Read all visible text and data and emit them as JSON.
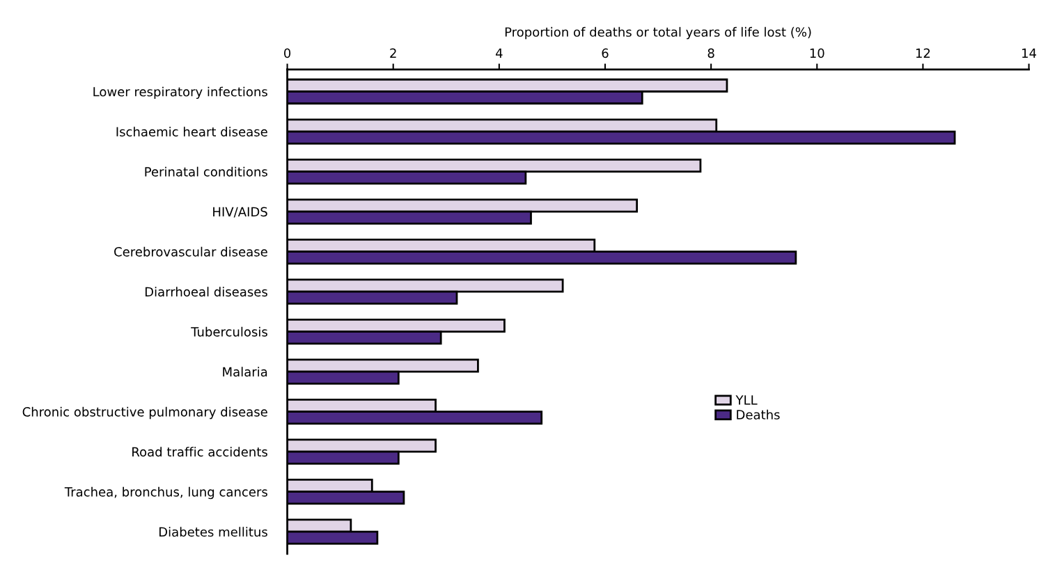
{
  "chart_data": {
    "type": "bar",
    "orientation": "horizontal",
    "xlabel": "Proportion of deaths or total years of life lost (%)",
    "categories": [
      "Lower respiratory infections",
      "Ischaemic heart disease",
      "Perinatal conditions",
      "HIV/AIDS",
      "Cerebrovascular disease",
      "Diarrhoeal diseases",
      "Tuberculosis",
      "Malaria",
      "Chronic obstructive pulmonary disease",
      "Road traffic accidents",
      "Trachea, bronchus, lung cancers",
      "Diabetes mellitus"
    ],
    "series": [
      {
        "name": "YLL",
        "color": "#e0d4e6",
        "values": [
          8.3,
          8.1,
          7.8,
          6.6,
          5.8,
          5.2,
          4.1,
          3.6,
          2.8,
          2.8,
          1.6,
          1.2
        ]
      },
      {
        "name": "Deaths",
        "color": "#4b2a85",
        "values": [
          6.7,
          12.6,
          4.5,
          4.6,
          9.6,
          3.2,
          2.9,
          2.1,
          4.8,
          2.1,
          2.2,
          1.7
        ]
      }
    ],
    "xlim": [
      0,
      14
    ],
    "xticks": [
      0,
      2,
      4,
      6,
      8,
      10,
      12,
      14
    ],
    "grid": false,
    "legend": "right"
  }
}
